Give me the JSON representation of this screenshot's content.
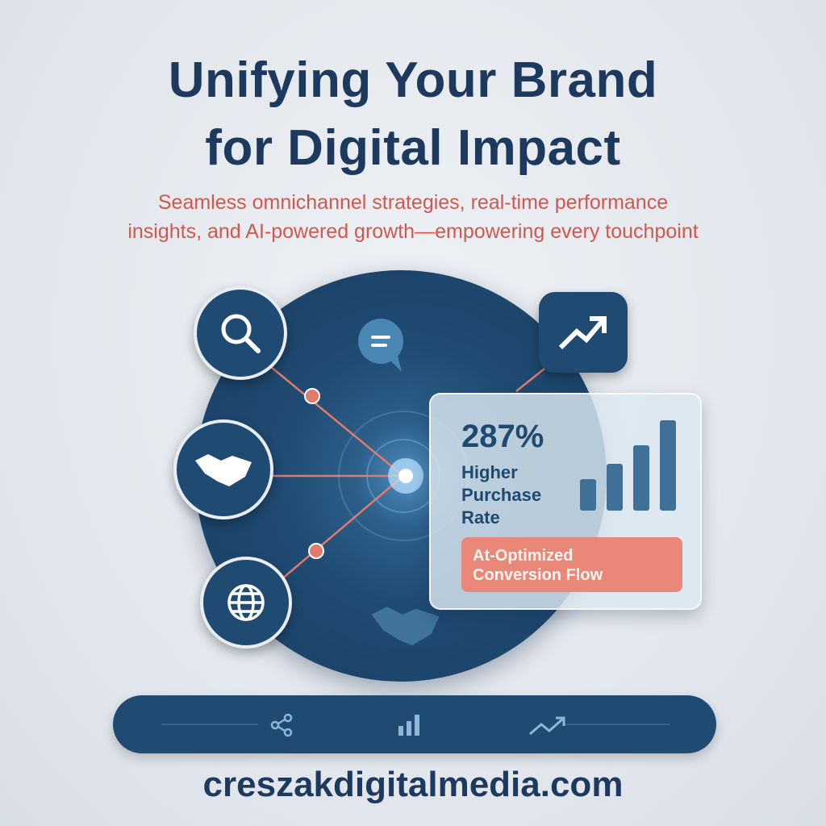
{
  "header": {
    "title_line1": "Unifying Your Brand",
    "title_line2": "for Digital Impact",
    "subtitle_line1": "Seamless omnichannel strategies, real-time performance",
    "subtitle_line2": "insights, and AI-powered growth—empowering every touchpoint"
  },
  "hub": {
    "icons": [
      "search-icon",
      "chat-icon",
      "trend-up-icon",
      "handshake-icon",
      "globe-icon",
      "handshake-icon"
    ]
  },
  "stat_card": {
    "value": "287%",
    "label_line1": "Higher",
    "label_line2": "Purchase",
    "label_line3": "Rate",
    "badge_line1": "At-Optimized",
    "badge_line2": "Conversion Flow",
    "bar_levels": [
      0.35,
      0.52,
      0.72,
      1.0
    ]
  },
  "footer_bar": {
    "icons": [
      "share-icon",
      "bar-chart-icon",
      "trend-up-icon"
    ]
  },
  "website": "creszakdigitalmedia.com",
  "colors": {
    "navy": "#1d3a5e",
    "accent": "#d0584e",
    "badge": "#e98878",
    "hub": "#1f4a72"
  }
}
